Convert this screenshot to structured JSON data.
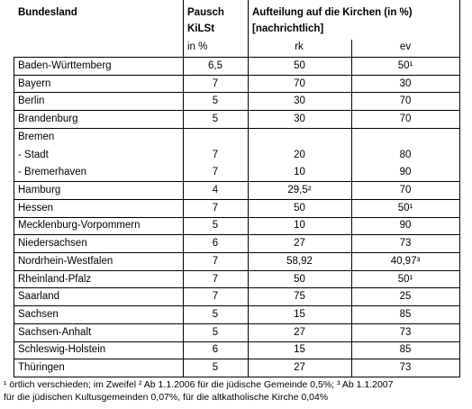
{
  "header": {
    "state": "Bundesland",
    "rate_line1": "Pausch",
    "rate_line2": "KiLSt",
    "rate_unit": "in  %",
    "split_line1": "Aufteilung auf die Kirchen (in  %)",
    "split_line2": "[nachrichtlich]",
    "rk": "rk",
    "ev": "ev"
  },
  "table": {
    "rows": [
      {
        "cells": [
          "Baden-Württemberg",
          "6,5",
          "50",
          "50¹"
        ]
      },
      {
        "cells": [
          "Bayern",
          "7",
          "70",
          "30"
        ]
      },
      {
        "cells": [
          "Berlin",
          "5",
          "30",
          "70"
        ]
      },
      {
        "cells": [
          "Brandenburg",
          "5",
          "30",
          "70"
        ]
      },
      {
        "cells": [
          "Bremen"
        ],
        "sub": [
          [
            " - Stadt",
            "7",
            "20",
            "80"
          ],
          [
            " - Bremerhaven",
            "7",
            "10",
            "90"
          ]
        ]
      },
      {
        "cells": [
          "Hamburg",
          "4",
          "29,5²",
          "70"
        ]
      },
      {
        "cells": [
          "Hessen",
          "7",
          "50",
          "50¹"
        ]
      },
      {
        "cells": [
          "Mecklenburg-Vorpommern",
          "5",
          "10",
          "90"
        ]
      },
      {
        "cells": [
          "Niedersachsen",
          "6",
          "27",
          "73"
        ]
      },
      {
        "cells": [
          "Nordrhein-Westfalen",
          "7",
          "58,92",
          "40,97³"
        ]
      },
      {
        "cells": [
          "Rheinland-Pfalz",
          "7",
          "50",
          "50¹"
        ]
      },
      {
        "cells": [
          "Saarland",
          "7",
          "75",
          "25"
        ]
      },
      {
        "cells": [
          "Sachsen",
          "5",
          "15",
          "85"
        ]
      },
      {
        "cells": [
          "Sachsen-Anhalt",
          "5",
          "27",
          "73"
        ]
      },
      {
        "cells": [
          "Schleswig-Holstein",
          "6",
          "15",
          "85"
        ]
      },
      {
        "cells": [
          "Thüringen",
          "5",
          "27",
          "73"
        ]
      }
    ]
  },
  "footnotes": [
    "¹ örtlich verschieden; im Zweifel   ² Ab 1.1.2006 für die jüdische Gemeinde 0,5%; ³ Ab 1.1.2007",
    "für die jüdischen Kultusgemeinden 0,07%, für die altkatholische Kirche 0,04%"
  ]
}
